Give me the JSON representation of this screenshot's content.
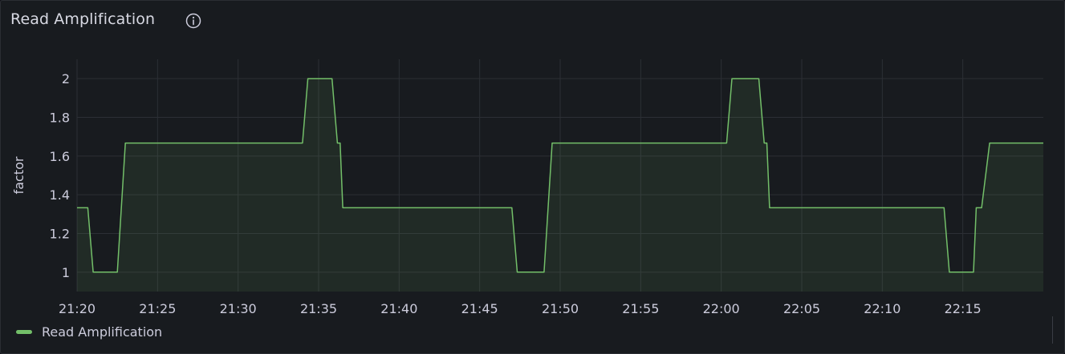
{
  "panel": {
    "title": "Read Amplification",
    "info_icon": "info-circle-icon"
  },
  "colors": {
    "series": "#73bf69",
    "grid": "#2c2f35",
    "text": "#ccccdc"
  },
  "legend": {
    "items": [
      {
        "label": "Read Amplification",
        "color": "#73bf69"
      }
    ]
  },
  "chart_data": {
    "type": "line",
    "title": "Read Amplification",
    "ylabel": "factor",
    "xlabel": "",
    "x_unit": "minutes",
    "xlim": [
      "21:20",
      "22:20"
    ],
    "ylim": [
      0.9,
      2.1
    ],
    "y_ticks": [
      "1",
      "1.2",
      "1.4",
      "1.6",
      "1.8",
      "2"
    ],
    "y_tick_values": [
      1,
      1.2,
      1.4,
      1.6,
      1.8,
      2
    ],
    "x_ticks": [
      "21:20",
      "21:25",
      "21:30",
      "21:35",
      "21:40",
      "21:45",
      "21:50",
      "21:55",
      "22:00",
      "22:05",
      "22:10",
      "22:15"
    ],
    "grid": true,
    "fill": true,
    "legend_position": "bottom-left",
    "series": [
      {
        "name": "Read Amplification",
        "color": "#73bf69",
        "x": [
          "21:20:00",
          "21:20:40",
          "21:21:00",
          "21:22:30",
          "21:23:00",
          "21:34:00",
          "21:34:20",
          "21:35:50",
          "21:36:10",
          "21:36:20",
          "21:36:30",
          "21:47:00",
          "21:47:20",
          "21:49:00",
          "21:49:30",
          "22:00:20",
          "22:00:40",
          "22:02:20",
          "22:02:40",
          "22:02:50",
          "22:03:00",
          "22:13:50",
          "22:14:10",
          "22:15:40",
          "22:15:50",
          "22:16:10",
          "22:16:40",
          "22:20:00"
        ],
        "values": [
          1.333,
          1.333,
          1.0,
          1.0,
          1.667,
          1.667,
          2.0,
          2.0,
          1.667,
          1.667,
          1.333,
          1.333,
          1.0,
          1.0,
          1.667,
          1.667,
          2.0,
          2.0,
          1.667,
          1.667,
          1.333,
          1.333,
          1.0,
          1.0,
          1.333,
          1.333,
          1.667,
          1.667
        ]
      }
    ]
  }
}
